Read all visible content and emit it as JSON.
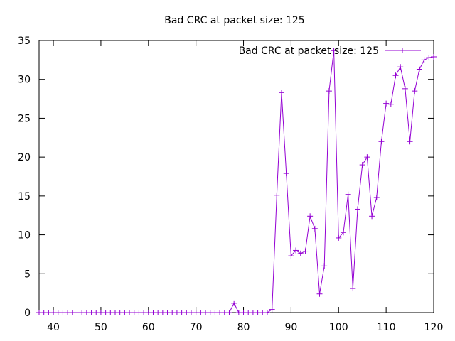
{
  "chart_data": {
    "type": "line",
    "title": "Bad CRC at packet size: 125",
    "xlabel": "",
    "ylabel": "",
    "xlim": [
      37,
      120
    ],
    "ylim": [
      0,
      35
    ],
    "xticks": [
      40,
      50,
      60,
      70,
      80,
      90,
      100,
      110,
      120
    ],
    "yticks": [
      0,
      5,
      10,
      15,
      20,
      25,
      30,
      35
    ],
    "grid": false,
    "legend_position": "top-right",
    "series": [
      {
        "name": "Bad CRC at packet size: 125",
        "color": "#9400d3",
        "marker": "plus",
        "x": [
          37,
          38,
          39,
          40,
          41,
          42,
          43,
          44,
          45,
          46,
          47,
          48,
          49,
          50,
          51,
          52,
          53,
          54,
          55,
          56,
          57,
          58,
          59,
          60,
          61,
          62,
          63,
          64,
          65,
          66,
          67,
          68,
          69,
          70,
          71,
          72,
          73,
          74,
          75,
          76,
          77,
          78,
          79,
          80,
          81,
          82,
          83,
          84,
          85,
          86,
          87,
          88,
          89,
          90,
          91,
          92,
          93,
          94,
          95,
          96,
          97,
          98,
          99,
          100,
          101,
          102,
          103,
          104,
          105,
          106,
          107,
          108,
          109,
          110,
          111,
          112,
          113,
          114,
          115,
          116,
          117,
          118,
          119,
          120
        ],
        "y": [
          0,
          0,
          0,
          0,
          0,
          0,
          0,
          0,
          0,
          0,
          0,
          0,
          0,
          0,
          0,
          0,
          0,
          0,
          0,
          0,
          0,
          0,
          0,
          0,
          0,
          0,
          0,
          0,
          0,
          0,
          0,
          0,
          0,
          0,
          0,
          0,
          0,
          0,
          0,
          0,
          0,
          1.2,
          0,
          0,
          0,
          0,
          0,
          0,
          0,
          0.4,
          15.1,
          28.3,
          17.9,
          7.3,
          8.0,
          7.6,
          7.9,
          12.4,
          10.8,
          2.4,
          6.0,
          28.5,
          33.7,
          9.6,
          10.3,
          15.2,
          3.1,
          13.3,
          19.0,
          20.0,
          12.4,
          14.8,
          22.0,
          26.9,
          26.8,
          30.5,
          31.6,
          28.8,
          22.0,
          28.5,
          31.3,
          32.5,
          32.8,
          32.9
        ]
      }
    ]
  }
}
